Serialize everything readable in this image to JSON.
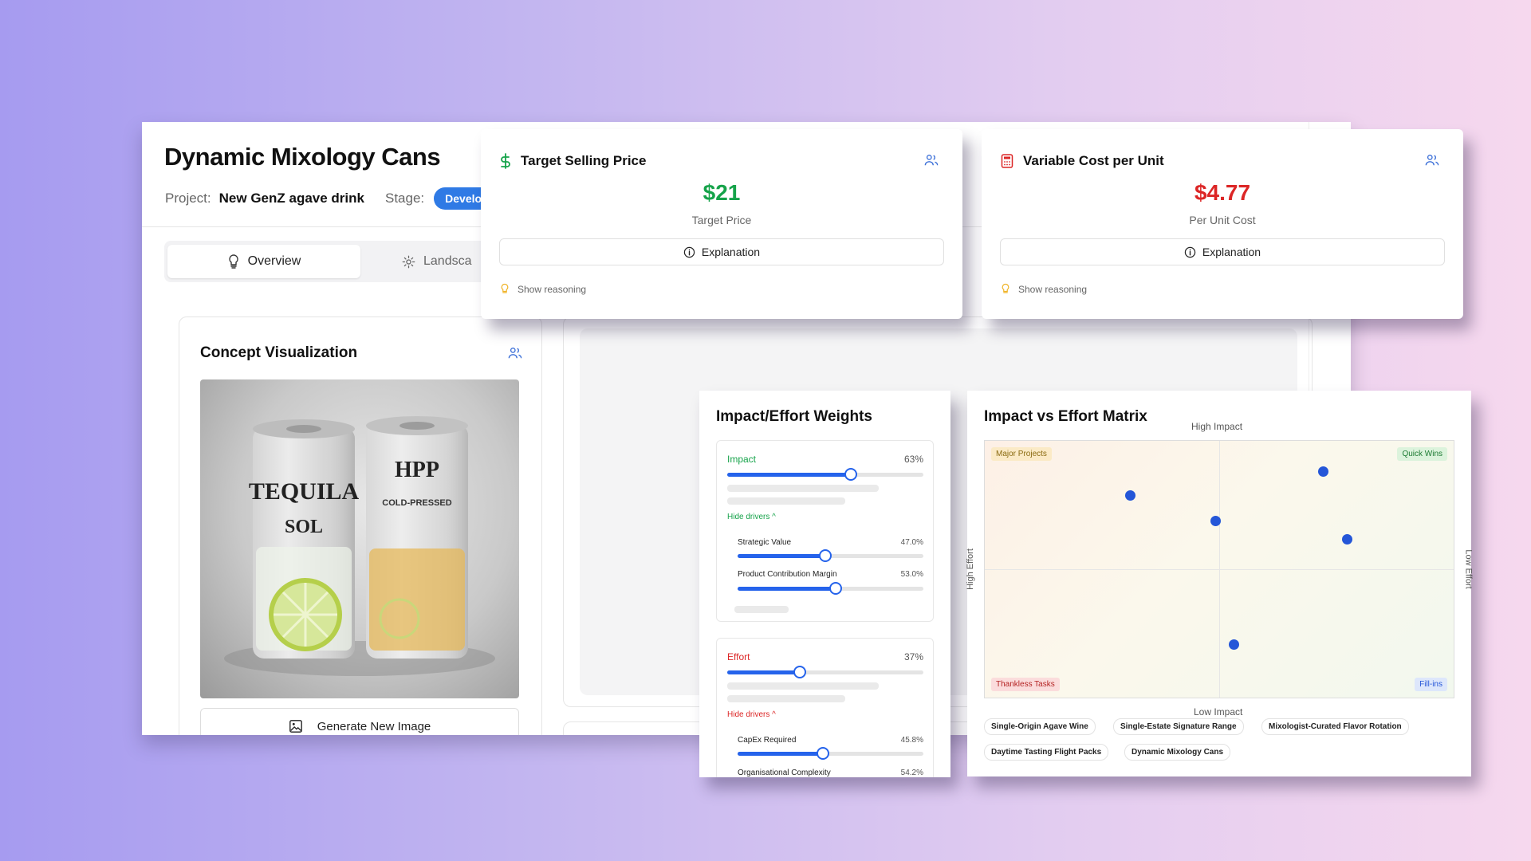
{
  "product": {
    "title": "Dynamic Mixology Cans",
    "project_label": "Project:",
    "project_value": "New GenZ agave drink",
    "stage_label": "Stage:",
    "stage_value": "Develo"
  },
  "tabs": [
    {
      "label": "Overview",
      "icon": "lightbulb-icon",
      "active": true
    },
    {
      "label": "Landsca",
      "icon": "gear-icon",
      "active": false
    }
  ],
  "concept": {
    "title": "Concept Visualization",
    "image_text": {
      "can_left_line1": "TEQUILA",
      "can_left_line2": "SOL",
      "can_right_line1": "HPP",
      "can_right_line2": "COLD-PRESSED"
    },
    "generate_label": "Generate New Image"
  },
  "target_price": {
    "title": "Target Selling Price",
    "value": "$21",
    "subtitle": "Target Price",
    "button_label": "Explanation",
    "reasoning_label": "Show reasoning",
    "color": "#16a34a"
  },
  "variable_cost": {
    "title": "Variable Cost per Unit",
    "value": "$4.77",
    "subtitle": "Per Unit Cost",
    "button_label": "Explanation",
    "reasoning_label": "Show reasoning",
    "color": "#dc2626"
  },
  "weights": {
    "title": "Impact/Effort Weights",
    "impact": {
      "label": "Impact",
      "percent_label": "63%",
      "value": 0.63,
      "color": "#16a34a",
      "hide_label": "Hide drivers ^",
      "drivers": [
        {
          "label": "Strategic Value",
          "percent_label": "47.0%",
          "value": 0.47
        },
        {
          "label": "Product Contribution Margin",
          "percent_label": "53.0%",
          "value": 0.53
        }
      ]
    },
    "effort": {
      "label": "Effort",
      "percent_label": "37%",
      "value": 0.37,
      "color": "#dc2626",
      "hide_label": "Hide drivers ^",
      "drivers": [
        {
          "label": "CapEx Required",
          "percent_label": "45.8%",
          "value": 0.458
        },
        {
          "label": "Organisational Complexity",
          "percent_label": "54.2%",
          "value": 0.542
        }
      ]
    }
  },
  "matrix": {
    "title": "Impact vs Effort Matrix",
    "axis_top": "High Impact",
    "axis_bottom": "Low Impact",
    "axis_left": "High Effort",
    "axis_right": "Low Effort",
    "quadrants": {
      "top_left": "Major Projects",
      "top_right": "Quick Wins",
      "bottom_left": "Thankless Tasks",
      "bottom_right": "Fill-ins"
    },
    "points": [
      {
        "ease": 0.31,
        "impact": 0.79
      },
      {
        "ease": 0.49,
        "impact": 0.69
      },
      {
        "ease": 0.72,
        "impact": 0.88
      },
      {
        "ease": 0.77,
        "impact": 0.62
      },
      {
        "ease": 0.53,
        "impact": 0.21
      }
    ],
    "projects": [
      "Single-Origin Agave Wine",
      "Single-Estate Signature Range",
      "Mixologist-Curated Flavor Rotation",
      "Daytime Tasting Flight Packs",
      "Dynamic Mixology Cans"
    ]
  }
}
